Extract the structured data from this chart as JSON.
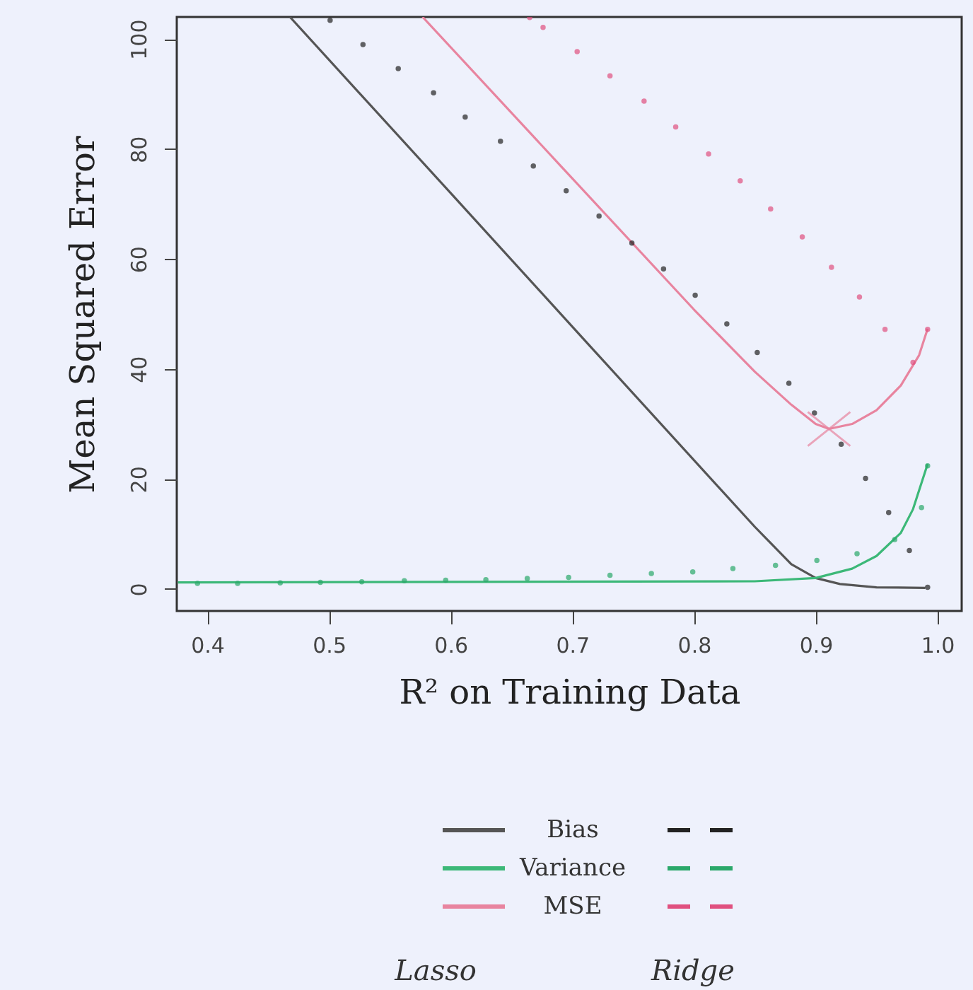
{
  "chart_data": {
    "type": "line",
    "xlabel": "R² on Training Data",
    "ylabel": "Mean Squared Error",
    "xlim": [
      0.375,
      1.02
    ],
    "ylim": [
      -4,
      104
    ],
    "xticks": [
      {
        "value": 0.4,
        "label": "0.4"
      },
      {
        "value": 0.5,
        "label": "0.5"
      },
      {
        "value": 0.6,
        "label": "0.6"
      },
      {
        "value": 0.7,
        "label": "0.7"
      },
      {
        "value": 0.8,
        "label": "0.8"
      },
      {
        "value": 0.9,
        "label": "0.9"
      },
      {
        "value": 1.0,
        "label": "1.0"
      }
    ],
    "yticks": [
      0,
      20,
      40,
      60,
      80,
      100
    ],
    "grid": false,
    "legend": "bottom",
    "annotations": [
      "Lasso",
      "Ridge"
    ],
    "series": [
      {
        "name": "Bias",
        "line_style": "solid",
        "color": "#555555",
        "x": [
          0.468,
          0.6,
          0.714,
          0.85,
          0.88,
          0.9,
          0.92,
          0.95,
          0.99
        ],
        "values": [
          104,
          72,
          44.3,
          11.3,
          4.5,
          2.0,
          0.9,
          0.3,
          0.2
        ]
      },
      {
        "name": "Variance",
        "line_style": "solid",
        "color": "#3cb878",
        "x": [
          0.376,
          0.6,
          0.85,
          0.9,
          0.93,
          0.95,
          0.97,
          0.98,
          0.992
        ],
        "values": [
          1.2,
          1.3,
          1.4,
          2.0,
          3.7,
          6.0,
          10.2,
          14.5,
          22.7
        ]
      },
      {
        "name": "MSE",
        "line_style": "solid",
        "color": "#e8849f",
        "x": [
          0.577,
          0.691,
          0.8,
          0.85,
          0.88,
          0.9,
          0.911,
          0.93,
          0.95,
          0.97,
          0.985,
          0.992
        ],
        "values": [
          104,
          76.8,
          50.8,
          39.5,
          33.5,
          30.0,
          29.1,
          30.0,
          32.5,
          37,
          42.5,
          47.3
        ]
      },
      {
        "type": "scatter",
        "marker": "circle",
        "color": "#222222",
        "x": [
          0.501,
          0.528,
          0.557,
          0.586,
          0.612,
          0.641,
          0.668,
          0.695,
          0.722,
          0.749,
          0.775,
          0.801,
          0.827,
          0.852,
          0.878,
          0.899,
          0.921,
          0.941,
          0.96,
          0.977,
          0.992
        ],
        "values": [
          103.4,
          99.0,
          94.6,
          90.2,
          85.8,
          81.4,
          76.9,
          72.4,
          67.8,
          62.9,
          58.2,
          53.4,
          48.2,
          43.0,
          37.4,
          32.0,
          26.3,
          20.1,
          13.9,
          7.0,
          0.3
        ]
      },
      {
        "type": "scatter",
        "marker": "circle",
        "color": "#2aa86a",
        "x": [
          0.392,
          0.425,
          0.46,
          0.493,
          0.527,
          0.562,
          0.596,
          0.629,
          0.663,
          0.697,
          0.731,
          0.765,
          0.799,
          0.832,
          0.867,
          0.901,
          0.934,
          0.965,
          0.987,
          0.992
        ],
        "values": [
          1.0,
          1.0,
          1.1,
          1.2,
          1.3,
          1.5,
          1.6,
          1.7,
          1.9,
          2.1,
          2.5,
          2.8,
          3.1,
          3.7,
          4.3,
          5.2,
          6.4,
          9.0,
          14.8,
          22.4
        ]
      },
      {
        "type": "scatter",
        "marker": "circle",
        "color": "#e0507f",
        "x": [
          0.665,
          0.676,
          0.704,
          0.731,
          0.759,
          0.785,
          0.812,
          0.838,
          0.863,
          0.889,
          0.913,
          0.936,
          0.957,
          0.98,
          0.992
        ],
        "values": [
          103.9,
          102.1,
          97.7,
          93.3,
          88.7,
          84.0,
          79.1,
          74.2,
          69.1,
          64.0,
          58.5,
          53.1,
          47.2,
          41.2,
          47.2
        ]
      },
      {
        "type": "scatter",
        "marker": "cross",
        "color": "#e8849f",
        "x": [
          0.911
        ],
        "values": [
          29.1
        ]
      }
    ]
  }
}
